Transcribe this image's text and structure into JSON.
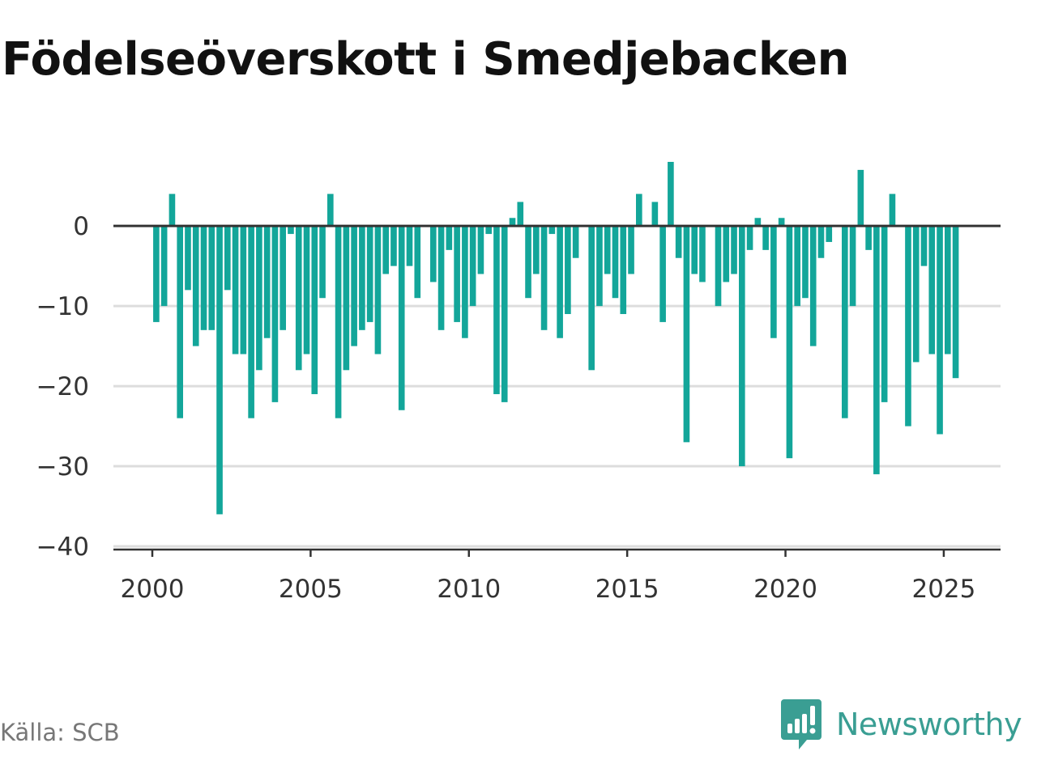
{
  "title": "Födelseöverskott i Smedjebacken",
  "source": "Källa: SCB",
  "brand": "Newsworthy",
  "colors": {
    "bar": "#13a69a",
    "zero_line": "#333333",
    "grid": "#dddddd",
    "axis": "#333333",
    "brand": "#3a9e93"
  },
  "icons": {
    "brand": "newsworthy-logo-icon"
  },
  "chart_data": {
    "type": "bar",
    "frequency": "quarterly",
    "start_year": 2000,
    "ylim": [
      -40,
      8
    ],
    "yticks": [
      0,
      -10,
      -20,
      -30,
      -40
    ],
    "ytick_labels": [
      "0",
      "−10",
      "−20",
      "−30",
      "−40"
    ],
    "xlim": [
      2000,
      2026.8
    ],
    "xticks": [
      2000,
      2005,
      2010,
      2015,
      2020,
      2025
    ],
    "xtick_labels": [
      "2000",
      "2005",
      "2010",
      "2015",
      "2020",
      "2025"
    ],
    "grid": true,
    "values": [
      -12,
      -10,
      4,
      -24,
      -8,
      -15,
      -13,
      -13,
      -36,
      -8,
      -16,
      -16,
      -24,
      -18,
      -14,
      -22,
      -13,
      -1,
      -18,
      -16,
      -21,
      -9,
      4,
      -24,
      -18,
      -15,
      -13,
      -12,
      -16,
      -6,
      -5,
      -23,
      -5,
      -9,
      0,
      -7,
      -13,
      -3,
      -12,
      -14,
      -10,
      -6,
      -1,
      -21,
      -22,
      1,
      3,
      -9,
      -6,
      -13,
      -1,
      -14,
      -11,
      -4,
      0,
      -18,
      -10,
      -6,
      -9,
      -11,
      -6,
      4,
      0,
      3,
      -12,
      8,
      -4,
      -27,
      -6,
      -7,
      0,
      -10,
      -7,
      -6,
      -30,
      -3,
      1,
      -3,
      -14,
      1,
      -29,
      -10,
      -9,
      -15,
      -4,
      -2,
      0,
      -24,
      -10,
      7,
      -3,
      -31,
      -22,
      4,
      0,
      -25,
      -17,
      -5,
      -16,
      -26,
      -16,
      -19
    ]
  }
}
